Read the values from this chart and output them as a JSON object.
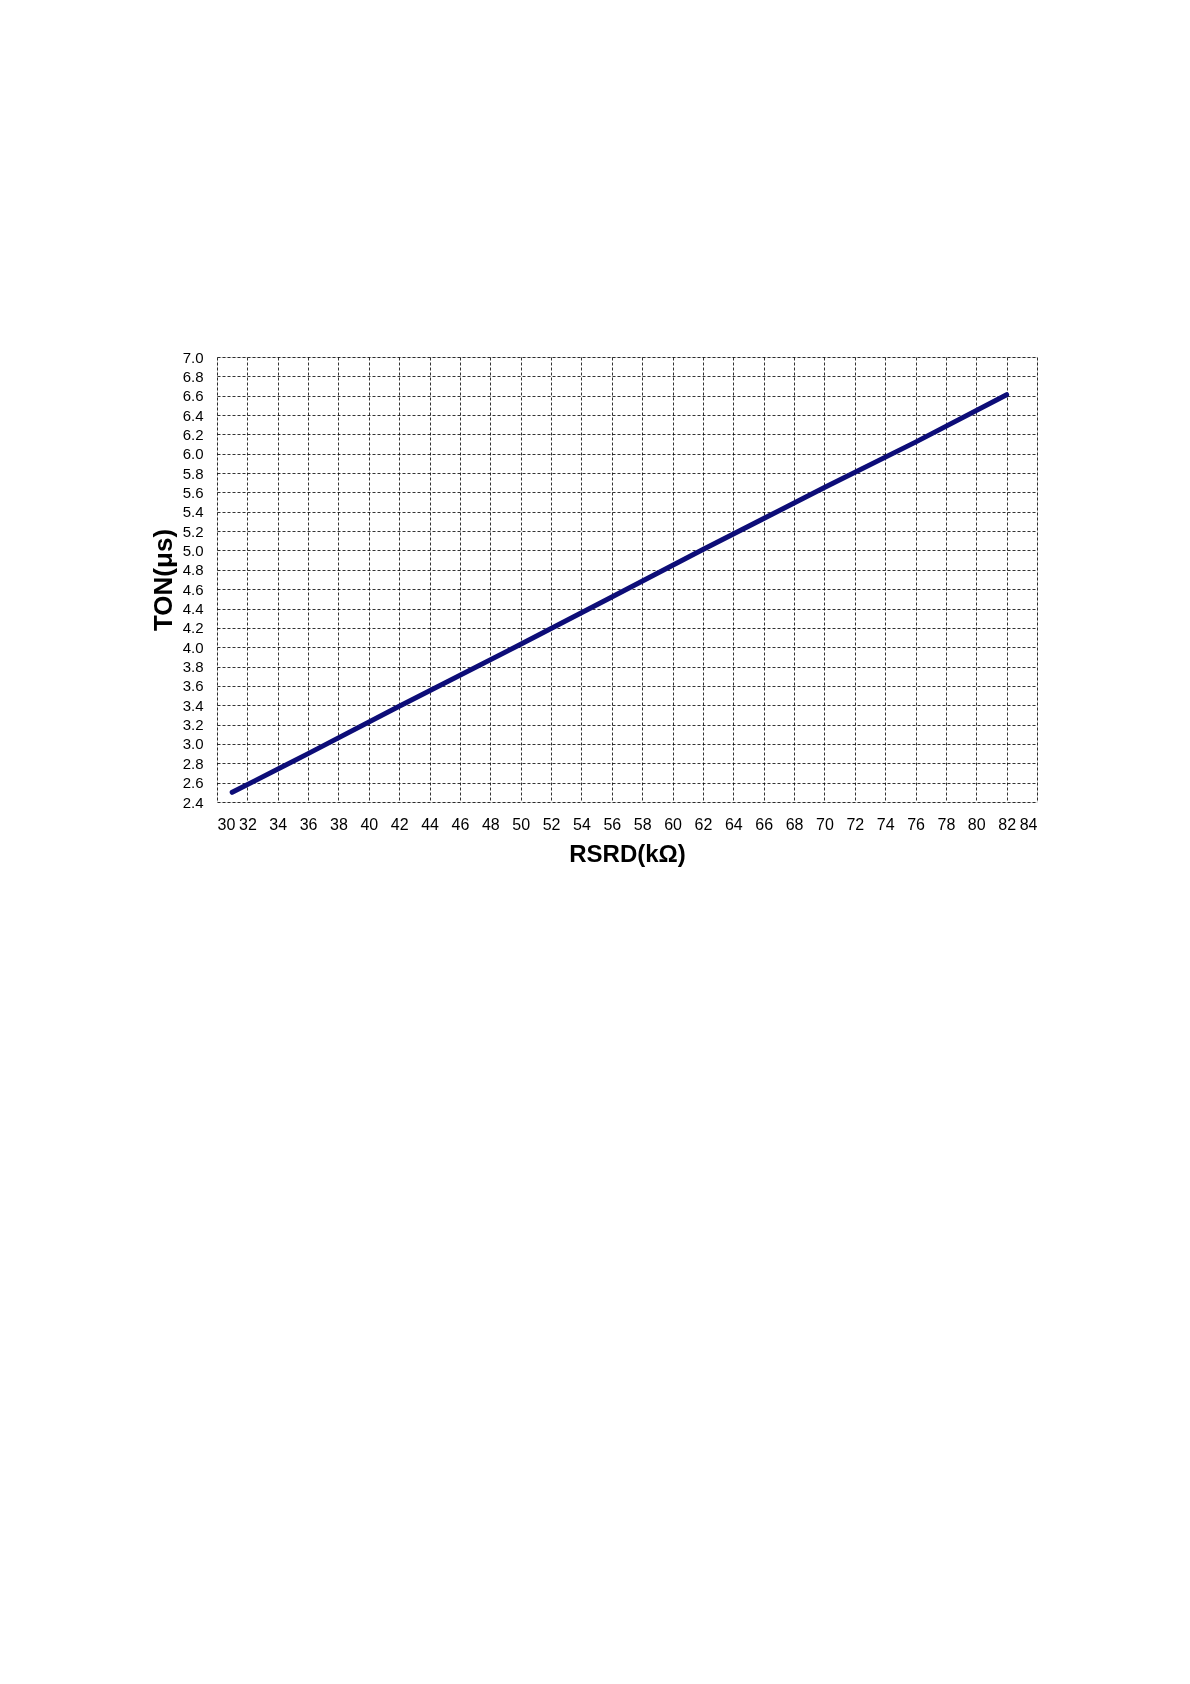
{
  "chart_data": {
    "type": "line",
    "xlabel": "RSRD(kΩ)",
    "ylabel": "TON(μs)",
    "x": [
      31,
      36,
      42,
      50,
      56,
      62,
      70,
      76,
      82
    ],
    "series": [
      {
        "color": "#0d0d78",
        "values": [
          2.5,
          2.9,
          3.39,
          4.03,
          4.52,
          5.01,
          5.65,
          6.12,
          6.61
        ]
      }
    ],
    "xlim": [
      30,
      84
    ],
    "xticks": [
      30,
      32,
      34,
      36,
      38,
      40,
      42,
      44,
      46,
      48,
      50,
      52,
      54,
      56,
      58,
      60,
      62,
      64,
      66,
      68,
      70,
      72,
      74,
      76,
      78,
      80,
      82,
      84
    ],
    "ylim": [
      2.4,
      7.0
    ],
    "yticks": [
      2.4,
      2.6,
      2.8,
      {
        "value": 3,
        "label": "3.0"
      },
      3.2,
      3.4,
      3.6,
      3.8,
      {
        "value": 4,
        "label": "4.0"
      },
      4.2,
      4.4,
      4.6,
      4.8,
      {
        "value": 5,
        "label": "5.0"
      },
      5.2,
      5.4,
      5.6,
      5.8,
      {
        "value": 6,
        "label": "6.0"
      },
      6.2,
      6.4,
      6.6,
      6.8,
      {
        "value": 7,
        "label": "7.0"
      }
    ],
    "grid": true,
    "legend": false,
    "marker": "none",
    "line_style": "solid"
  }
}
